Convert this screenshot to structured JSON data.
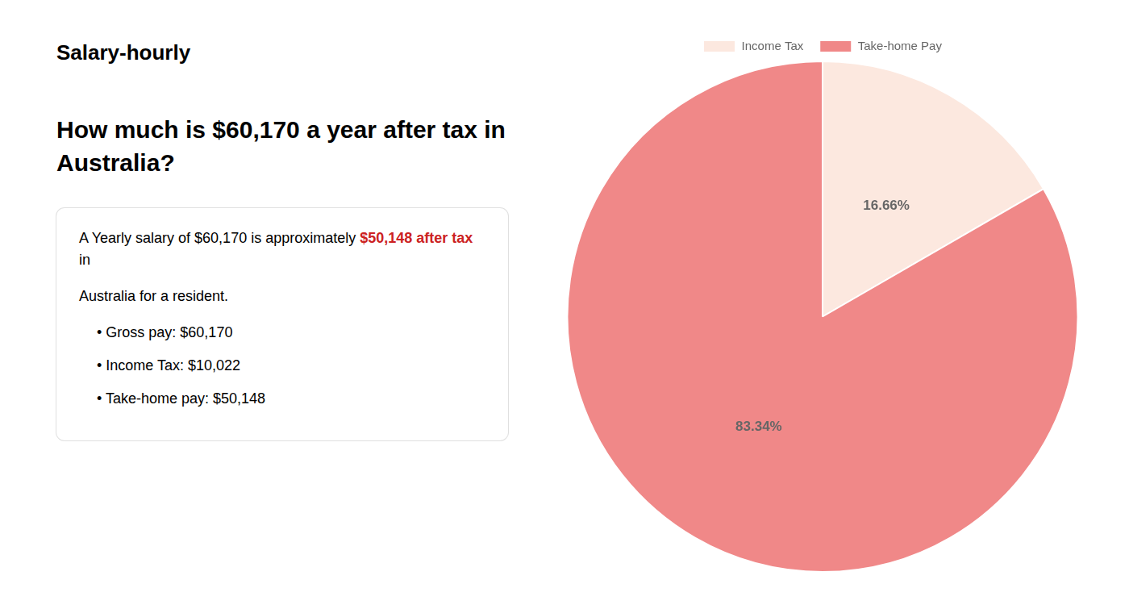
{
  "chart_data": {
    "type": "pie",
    "title": [
      "How much is $60,170 a year after tax in",
      "Australia?"
    ],
    "categories": [
      "Income Tax",
      "Take-home Pay"
    ],
    "values": [
      16.66,
      83.34
    ],
    "value_labels": [
      "16.66%",
      "83.34%"
    ],
    "colors": [
      "#fce8df",
      "#f08888"
    ],
    "data_labels": true,
    "legend": "top",
    "annotations": [
      [
        {
          "text": "Salary-hourly"
        }
      ],
      [
        {
          "text": "A Yearly salary of $60,170 is approximately "
        },
        {
          "text": "$50,148 after tax",
          "color": "#cc2222"
        },
        {
          "text": " in"
        }
      ],
      [
        {
          "text": "Australia for a resident."
        }
      ],
      [
        {
          "text": "•  Gross pay: $60,170"
        }
      ],
      [
        {
          "text": "•  Income Tax: $10,022"
        }
      ],
      [
        {
          "text": "•  Take-home pay: $50,148"
        }
      ]
    ]
  }
}
